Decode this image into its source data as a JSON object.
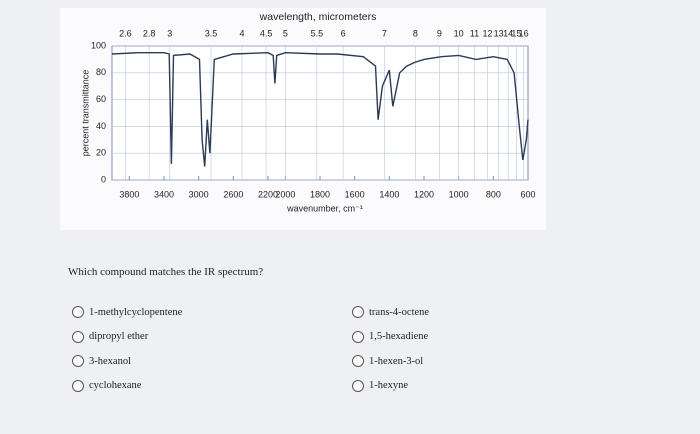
{
  "chart_data": {
    "type": "line",
    "title": "wavelength, micrometers",
    "x_label": "wavenumber, cm⁻¹",
    "y_label": "percent transmittance",
    "xlim": [
      4000,
      600
    ],
    "x_break": 2000,
    "xticks": [
      3800,
      3400,
      3000,
      2600,
      2200,
      2000,
      1800,
      1600,
      1400,
      1200,
      1000,
      800,
      600
    ],
    "x2ticks": [
      2.6,
      2.8,
      3,
      3.5,
      4,
      4.5,
      5,
      5.5,
      6,
      7,
      8,
      9,
      10,
      11,
      12,
      13,
      14,
      15,
      16
    ],
    "ylim": [
      0,
      100
    ],
    "yticks": [
      0,
      20,
      40,
      60,
      80,
      100
    ],
    "grid": true,
    "color": "#2b3a55",
    "x": [
      4000,
      3700,
      3400,
      3340,
      3315,
      3290,
      3100,
      2990,
      2960,
      2930,
      2900,
      2870,
      2820,
      2600,
      2200,
      2140,
      2120,
      2100,
      2000,
      1800,
      1700,
      1550,
      1480,
      1465,
      1440,
      1400,
      1380,
      1340,
      1300,
      1250,
      1200,
      1100,
      1000,
      900,
      800,
      720,
      680,
      650,
      630,
      610,
      600
    ],
    "values": [
      94,
      95,
      95,
      94,
      12,
      93,
      94,
      90,
      30,
      10,
      45,
      20,
      90,
      94,
      95,
      93,
      72,
      93,
      95,
      94,
      94,
      92,
      85,
      45,
      70,
      82,
      55,
      80,
      85,
      88,
      90,
      92,
      93,
      90,
      92,
      90,
      80,
      40,
      15,
      30,
      45
    ]
  },
  "question": "Which compound matches the IR spectrum?",
  "options": [
    "1-methylcyclopentene",
    "dipropyl ether",
    "3-hexanol",
    "cyclohexane",
    "trans-4-octene",
    "1,5-hexadiene",
    "1-hexen-3-ol",
    "1-hexyne"
  ]
}
